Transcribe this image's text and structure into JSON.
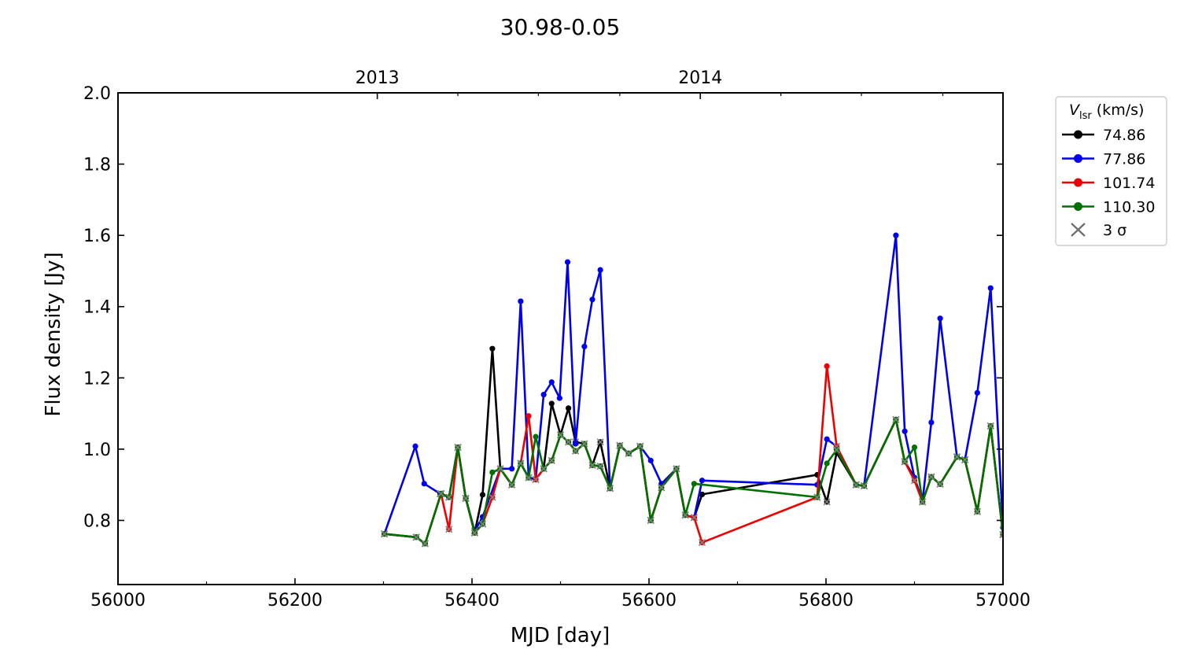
{
  "chart_data": {
    "type": "line",
    "title": "30.98-0.05",
    "xlabel": "MJD [day]",
    "ylabel": "Flux density [Jy]",
    "xlim": [
      56000,
      57000
    ],
    "ylim": [
      0.62,
      2.0
    ],
    "x_ticks": [
      56000,
      56200,
      56400,
      56600,
      56800,
      57000
    ],
    "x_tick_labels": [
      "56000",
      "56200",
      "56400",
      "56600",
      "56800",
      "57000"
    ],
    "y_ticks": [
      0.8,
      1.0,
      1.2,
      1.4,
      1.6,
      1.8,
      2.0
    ],
    "y_tick_labels": [
      "0.8",
      "1.0",
      "1.2",
      "1.4",
      "1.6",
      "1.8",
      "2.0"
    ],
    "top_axis": {
      "ticks": [
        56293,
        56658
      ],
      "labels": [
        "2013",
        "2014"
      ]
    },
    "grid": false,
    "legend": {
      "placement": "outside-right",
      "title_main": "V",
      "title_sub": "lsr",
      "title_rest": " (km/s)",
      "sigma_label": "3 σ"
    },
    "series": [
      {
        "name": "74.86",
        "color": "#000000",
        "points": [
          [
            56301,
            0.762
          ],
          [
            56337,
            0.753
          ],
          [
            56347,
            0.735
          ],
          [
            56365,
            0.875
          ],
          [
            56374,
            0.865
          ],
          [
            56384,
            1.005
          ],
          [
            56393,
            0.862
          ],
          [
            56403,
            0.765
          ],
          [
            56412,
            0.872
          ],
          [
            56423,
            1.282
          ],
          [
            56432,
            0.945
          ],
          [
            56445,
            0.9
          ],
          [
            56455,
            0.96
          ],
          [
            56464,
            0.92
          ],
          [
            56472,
            0.915
          ],
          [
            56481,
            0.945
          ],
          [
            56490,
            1.128
          ],
          [
            56500,
            1.04
          ],
          [
            56509,
            1.115
          ],
          [
            56517,
            1.02
          ],
          [
            56527,
            1.015
          ],
          [
            56536,
            0.955
          ],
          [
            56545,
            1.02
          ],
          [
            56556,
            0.89
          ],
          [
            56567,
            1.01
          ],
          [
            56577,
            0.988
          ],
          [
            56590,
            1.008
          ],
          [
            56602,
            0.8
          ],
          [
            56614,
            0.892
          ],
          [
            56631,
            0.945
          ],
          [
            56641,
            0.815
          ],
          [
            56651,
            0.808
          ],
          [
            56660,
            0.873
          ],
          [
            56790,
            0.928
          ],
          [
            56801,
            0.852
          ],
          [
            56812,
            0.99
          ],
          [
            56834,
            0.9
          ],
          [
            56843,
            0.897
          ],
          [
            56879,
            1.083
          ],
          [
            56889,
            0.965
          ],
          [
            56900,
            0.92
          ],
          [
            56909,
            0.852
          ],
          [
            56919,
            0.922
          ],
          [
            56929,
            0.902
          ],
          [
            56948,
            0.978
          ],
          [
            56957,
            0.97
          ],
          [
            56971,
            0.825
          ],
          [
            56986,
            1.065
          ],
          [
            57000,
            0.76
          ]
        ],
        "sigma_x": [
          56301,
          56337,
          56347,
          56365,
          56374,
          56384,
          56393,
          56403,
          56445,
          56455,
          56464,
          56472,
          56481,
          56517,
          56536,
          56545,
          56556,
          56567,
          56577,
          56590,
          56602,
          56614,
          56631,
          56641,
          56651,
          56801,
          56834,
          56843,
          56889,
          56909,
          56919,
          56929,
          56948,
          56957,
          56971,
          57000
        ]
      },
      {
        "name": "77.86",
        "color": "#0000ee",
        "points": [
          [
            56301,
            0.762
          ],
          [
            56336,
            1.008
          ],
          [
            56346,
            0.903
          ],
          [
            56364,
            0.875
          ],
          [
            56374,
            0.865
          ],
          [
            56384,
            1.005
          ],
          [
            56393,
            0.862
          ],
          [
            56403,
            0.77
          ],
          [
            56412,
            0.81
          ],
          [
            56432,
            0.945
          ],
          [
            56445,
            0.945
          ],
          [
            56455,
            1.415
          ],
          [
            56464,
            0.92
          ],
          [
            56472,
            0.915
          ],
          [
            56481,
            1.153
          ],
          [
            56490,
            1.188
          ],
          [
            56499,
            1.143
          ],
          [
            56508,
            1.525
          ],
          [
            56517,
            1.015
          ],
          [
            56527,
            1.288
          ],
          [
            56536,
            1.42
          ],
          [
            56545,
            1.503
          ],
          [
            56556,
            0.89
          ],
          [
            56567,
            1.01
          ],
          [
            56577,
            0.988
          ],
          [
            56590,
            1.008
          ],
          [
            56602,
            0.968
          ],
          [
            56614,
            0.903
          ],
          [
            56631,
            0.945
          ],
          [
            56641,
            0.815
          ],
          [
            56651,
            0.808
          ],
          [
            56660,
            0.912
          ],
          [
            56790,
            0.9
          ],
          [
            56801,
            1.028
          ],
          [
            56812,
            1.008
          ],
          [
            56834,
            0.9
          ],
          [
            56843,
            0.897
          ],
          [
            56879,
            1.6
          ],
          [
            56889,
            1.05
          ],
          [
            56900,
            0.92
          ],
          [
            56909,
            0.852
          ],
          [
            56919,
            1.075
          ],
          [
            56929,
            1.367
          ],
          [
            56948,
            0.978
          ],
          [
            56957,
            0.97
          ],
          [
            56971,
            1.158
          ],
          [
            56986,
            1.452
          ],
          [
            57000,
            0.78
          ]
        ],
        "sigma_x": [
          56301,
          56364,
          56374,
          56384,
          56393,
          56403,
          56464,
          56472,
          56556,
          56567,
          56577,
          56590,
          56641,
          56651,
          56834,
          56843,
          56909,
          56948,
          56957
        ]
      },
      {
        "name": "101.74",
        "color": "#ee0000",
        "points": [
          [
            56301,
            0.762
          ],
          [
            56337,
            0.753
          ],
          [
            56347,
            0.735
          ],
          [
            56365,
            0.875
          ],
          [
            56374,
            0.775
          ],
          [
            56384,
            1.005
          ],
          [
            56393,
            0.862
          ],
          [
            56403,
            0.765
          ],
          [
            56412,
            0.79
          ],
          [
            56423,
            0.865
          ],
          [
            56432,
            0.945
          ],
          [
            56445,
            0.9
          ],
          [
            56455,
            0.96
          ],
          [
            56464,
            1.093
          ],
          [
            56472,
            0.915
          ],
          [
            56481,
            0.945
          ],
          [
            56490,
            0.968
          ],
          [
            56500,
            1.04
          ],
          [
            56509,
            1.02
          ],
          [
            56517,
            0.995
          ],
          [
            56527,
            1.015
          ],
          [
            56536,
            0.955
          ],
          [
            56545,
            0.952
          ],
          [
            56556,
            0.89
          ],
          [
            56567,
            1.01
          ],
          [
            56577,
            0.988
          ],
          [
            56590,
            1.008
          ],
          [
            56602,
            0.8
          ],
          [
            56614,
            0.892
          ],
          [
            56631,
            0.945
          ],
          [
            56641,
            0.815
          ],
          [
            56651,
            0.808
          ],
          [
            56660,
            0.738
          ],
          [
            56790,
            0.865
          ],
          [
            56801,
            1.233
          ],
          [
            56812,
            1.008
          ],
          [
            56834,
            0.9
          ],
          [
            56843,
            0.897
          ],
          [
            56879,
            1.083
          ],
          [
            56889,
            0.965
          ],
          [
            56900,
            0.912
          ],
          [
            56909,
            0.852
          ],
          [
            56919,
            0.922
          ],
          [
            56929,
            0.902
          ],
          [
            56948,
            0.978
          ],
          [
            56957,
            0.97
          ],
          [
            56971,
            0.825
          ],
          [
            56986,
            1.065
          ],
          [
            57000,
            0.76
          ]
        ],
        "sigma_x": [
          56301,
          56337,
          56347,
          56365,
          56374,
          56384,
          56393,
          56403,
          56412,
          56423,
          56432,
          56445,
          56455,
          56472,
          56481,
          56490,
          56500,
          56509,
          56517,
          56527,
          56536,
          56545,
          56556,
          56567,
          56577,
          56590,
          56602,
          56614,
          56631,
          56641,
          56651,
          56660,
          56790,
          56812,
          56834,
          56843,
          56879,
          56889,
          56900,
          56909,
          56919,
          56929,
          56948,
          56957,
          56971,
          56986,
          57000
        ]
      },
      {
        "name": "110.30",
        "color": "#007000",
        "points": [
          [
            56301,
            0.762
          ],
          [
            56337,
            0.753
          ],
          [
            56347,
            0.735
          ],
          [
            56365,
            0.875
          ],
          [
            56374,
            0.865
          ],
          [
            56384,
            1.005
          ],
          [
            56393,
            0.862
          ],
          [
            56403,
            0.765
          ],
          [
            56412,
            0.79
          ],
          [
            56423,
            0.935
          ],
          [
            56432,
            0.945
          ],
          [
            56445,
            0.9
          ],
          [
            56455,
            0.96
          ],
          [
            56464,
            0.92
          ],
          [
            56472,
            1.035
          ],
          [
            56481,
            0.945
          ],
          [
            56490,
            0.968
          ],
          [
            56500,
            1.04
          ],
          [
            56509,
            1.02
          ],
          [
            56517,
            0.995
          ],
          [
            56527,
            1.015
          ],
          [
            56536,
            0.955
          ],
          [
            56545,
            0.952
          ],
          [
            56556,
            0.89
          ],
          [
            56567,
            1.01
          ],
          [
            56577,
            0.988
          ],
          [
            56590,
            1.008
          ],
          [
            56602,
            0.8
          ],
          [
            56614,
            0.892
          ],
          [
            56631,
            0.945
          ],
          [
            56641,
            0.815
          ],
          [
            56651,
            0.903
          ],
          [
            56790,
            0.865
          ],
          [
            56801,
            0.96
          ],
          [
            56812,
            0.998
          ],
          [
            56834,
            0.9
          ],
          [
            56843,
            0.897
          ],
          [
            56879,
            1.083
          ],
          [
            56889,
            0.965
          ],
          [
            56900,
            1.005
          ],
          [
            56909,
            0.852
          ],
          [
            56919,
            0.922
          ],
          [
            56929,
            0.902
          ],
          [
            56948,
            0.978
          ],
          [
            56957,
            0.97
          ],
          [
            56971,
            0.825
          ],
          [
            56986,
            1.065
          ],
          [
            57000,
            0.76
          ]
        ],
        "sigma_x": [
          56301,
          56337,
          56347,
          56365,
          56374,
          56384,
          56393,
          56403,
          56412,
          56432,
          56445,
          56455,
          56464,
          56481,
          56490,
          56500,
          56509,
          56517,
          56527,
          56536,
          56545,
          56556,
          56567,
          56577,
          56590,
          56602,
          56614,
          56631,
          56641,
          56790,
          56812,
          56834,
          56843,
          56879,
          56889,
          56909,
          56919,
          56929,
          56948,
          56957,
          56971,
          56986,
          57000
        ]
      }
    ]
  }
}
